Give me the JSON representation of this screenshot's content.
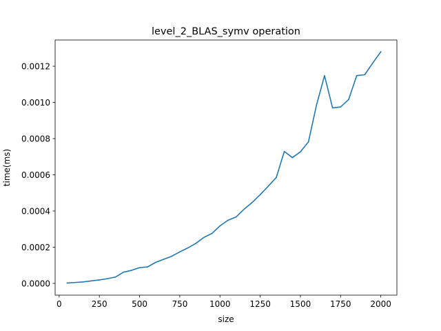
{
  "chart_data": {
    "type": "line",
    "title": "level_2_BLAS_symv operation",
    "xlabel": "size",
    "ylabel": "time(ms)",
    "xlim": [
      -25,
      2100
    ],
    "ylim": [
      -6.5e-05,
      0.001345
    ],
    "xticks": [
      0,
      250,
      500,
      750,
      1000,
      1250,
      1500,
      1750,
      2000
    ],
    "xtick_labels": [
      "0",
      "250",
      "500",
      "750",
      "1000",
      "1250",
      "1500",
      "1750",
      "2000"
    ],
    "yticks": [
      0.0,
      0.0002,
      0.0004,
      0.0006,
      0.0008,
      0.001,
      0.0012
    ],
    "ytick_labels": [
      "0.0000",
      "0.0002",
      "0.0004",
      "0.0006",
      "0.0008",
      "0.0010",
      "0.0012"
    ],
    "grid": false,
    "series": [
      {
        "color": "#1f77b4",
        "x": [
          50,
          100,
          150,
          200,
          250,
          300,
          350,
          400,
          450,
          500,
          550,
          600,
          650,
          700,
          750,
          800,
          850,
          900,
          950,
          1000,
          1050,
          1100,
          1150,
          1200,
          1250,
          1300,
          1350,
          1400,
          1450,
          1500,
          1550,
          1600,
          1650,
          1700,
          1750,
          1800,
          1850,
          1900,
          1950,
          2000
        ],
        "y": [
          2e-06,
          5e-06,
          8e-06,
          1.4e-05,
          1.9e-05,
          2.6e-05,
          3.5e-05,
          6.2e-05,
          7.2e-05,
          8.7e-05,
          9.1e-05,
          0.000116,
          0.000133,
          0.00015,
          0.000174,
          0.000196,
          0.000221,
          0.000254,
          0.000276,
          0.000318,
          0.000349,
          0.000367,
          0.00041,
          0.000447,
          0.00049,
          0.000537,
          0.000585,
          0.000729,
          0.000695,
          0.000727,
          0.000782,
          0.000985,
          0.001148,
          0.00097,
          0.000975,
          0.001016,
          0.001148,
          0.001153,
          0.001218,
          0.00128
        ]
      }
    ]
  }
}
